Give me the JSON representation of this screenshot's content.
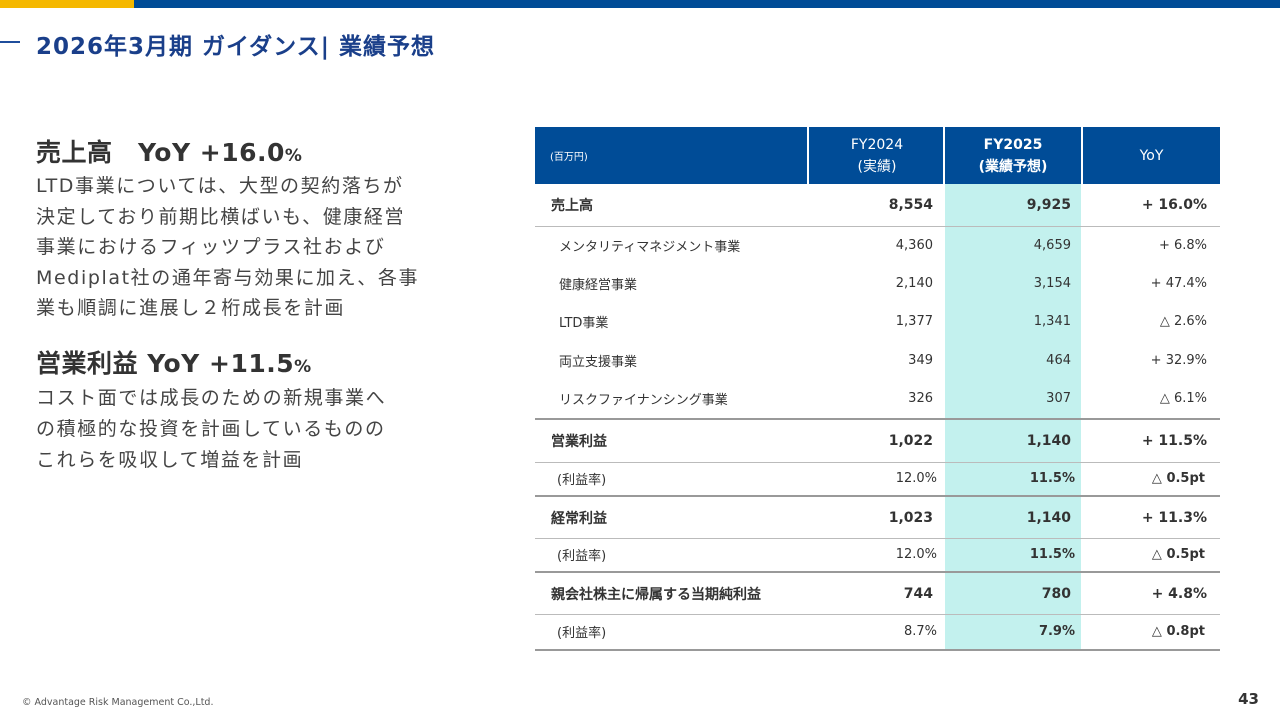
{
  "slide": {
    "title": "2026年3月期 ガイダンス| 業績予想",
    "footer": "© Advantage Risk Management Co.,Ltd.",
    "page_number": "43",
    "colors": {
      "primary_blue": "#004c97",
      "accent_gold": "#f5b800",
      "highlight_column": "#c3f1ee"
    }
  },
  "left": {
    "sales_heading": "売上高　YoY +16.0",
    "sales_heading_pct": "%",
    "sales_lines": [
      "LTD事業については、大型の契約落ちが",
      "決定しており前期比横ばいも、健康経営",
      "事業におけるフィッツプラス社および",
      "Mediplat社の通年寄与効果に加え、各事",
      "業も順調に進展し２桁成長を計画"
    ],
    "op_heading": "営業利益 YoY +11.5",
    "op_heading_pct": "%",
    "op_lines": [
      "コスト面では成長のための新規事業へ",
      "の積極的な投資を計画しているものの",
      "これらを吸収して増益を計画"
    ]
  },
  "table": {
    "unit": "(百万円)",
    "col1_line1": "FY2024",
    "col1_line2": "(実績)",
    "col2_line1": "FY2025",
    "col2_line2": "(業績予想)",
    "col3": "YoY",
    "rows": [
      {
        "label": "売上高",
        "fy2024": "8,554",
        "fy2025": "9,925",
        "yoy": "+ 16.0%"
      },
      {
        "label": "メンタリティマネジメント事業",
        "fy2024": "4,360",
        "fy2025": "4,659",
        "yoy": "+ 6.8%"
      },
      {
        "label": "健康経営事業",
        "fy2024": "2,140",
        "fy2025": "3,154",
        "yoy": "+ 47.4%"
      },
      {
        "label": "LTD事業",
        "fy2024": "1,377",
        "fy2025": "1,341",
        "yoy": "△ 2.6%"
      },
      {
        "label": "両立支援事業",
        "fy2024": "349",
        "fy2025": "464",
        "yoy": "+ 32.9%"
      },
      {
        "label": "リスクファイナンシング事業",
        "fy2024": "326",
        "fy2025": "307",
        "yoy": "△ 6.1%"
      },
      {
        "label": "営業利益",
        "fy2024": "1,022",
        "fy2025": "1,140",
        "yoy": "+ 11.5%"
      },
      {
        "label": "(利益率)",
        "fy2024": "12.0%",
        "fy2025": "11.5%",
        "yoy": "△ 0.5pt"
      },
      {
        "label": "経常利益",
        "fy2024": "1,023",
        "fy2025": "1,140",
        "yoy": "+ 11.3%"
      },
      {
        "label": "(利益率)",
        "fy2024": "12.0%",
        "fy2025": "11.5%",
        "yoy": "△ 0.5pt"
      },
      {
        "label": "親会社株主に帰属する当期純利益",
        "fy2024": "744",
        "fy2025": "780",
        "yoy": "+ 4.8%"
      },
      {
        "label": "(利益率)",
        "fy2024": "8.7%",
        "fy2025": "7.9%",
        "yoy": "△ 0.8pt"
      }
    ]
  }
}
